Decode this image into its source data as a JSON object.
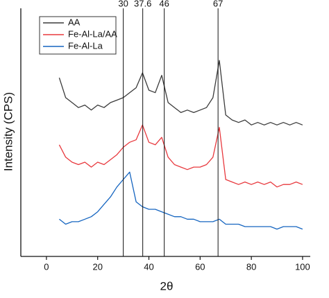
{
  "chart_data": {
    "type": "line",
    "x_label": "2θ",
    "y_label": "Intensity (CPS)",
    "x": [
      5,
      7.5,
      10,
      12.5,
      15,
      17.5,
      20,
      22.5,
      25,
      27.5,
      30,
      32.5,
      35,
      37.5,
      40,
      42.5,
      45,
      47.5,
      50,
      52.5,
      55,
      57.5,
      60,
      62.5,
      65,
      67.5,
      70,
      72.5,
      75,
      77.5,
      80,
      82.5,
      85,
      87.5,
      90,
      92.5,
      95,
      97.5,
      100
    ],
    "series": [
      {
        "name": "AA",
        "color": "#3a3a3a",
        "values": [
          72,
          64,
          62,
          60,
          61,
          59,
          61,
          60,
          62,
          63,
          64,
          66,
          68,
          74,
          67,
          66,
          73,
          62,
          60,
          58,
          59,
          58,
          59,
          60,
          64,
          79,
          57,
          55,
          54,
          55,
          53,
          54,
          53,
          54,
          53,
          54,
          53,
          54,
          53
        ]
      },
      {
        "name": "Fe-Al-La/AA",
        "color": "#e8383d",
        "values": [
          45,
          40,
          38,
          37,
          38,
          36,
          38,
          37,
          39,
          41,
          44,
          46,
          47,
          53,
          46,
          45,
          48,
          40,
          37,
          36,
          35,
          36,
          36,
          37,
          40,
          52,
          31,
          30,
          29,
          30,
          29,
          30,
          29,
          30,
          28,
          29,
          29,
          30,
          29
        ]
      },
      {
        "name": "Fe-Al-La",
        "color": "#1565c0",
        "values": [
          15,
          13,
          14,
          14,
          15,
          16,
          18,
          21,
          24,
          28,
          31,
          34,
          22,
          20,
          19,
          19,
          18,
          17,
          16,
          16,
          15,
          15,
          14,
          14,
          14,
          15,
          13,
          13,
          13,
          12,
          12,
          12,
          12,
          12,
          11,
          12,
          12,
          12,
          11
        ]
      }
    ],
    "vlines": [
      30,
      37.6,
      46,
      67
    ],
    "xlim": [
      -10,
      103
    ],
    "xticks": [
      0,
      20,
      40,
      60,
      80,
      100
    ],
    "ylim": [
      0,
      100
    ],
    "legend": "upper left",
    "grid": false
  }
}
